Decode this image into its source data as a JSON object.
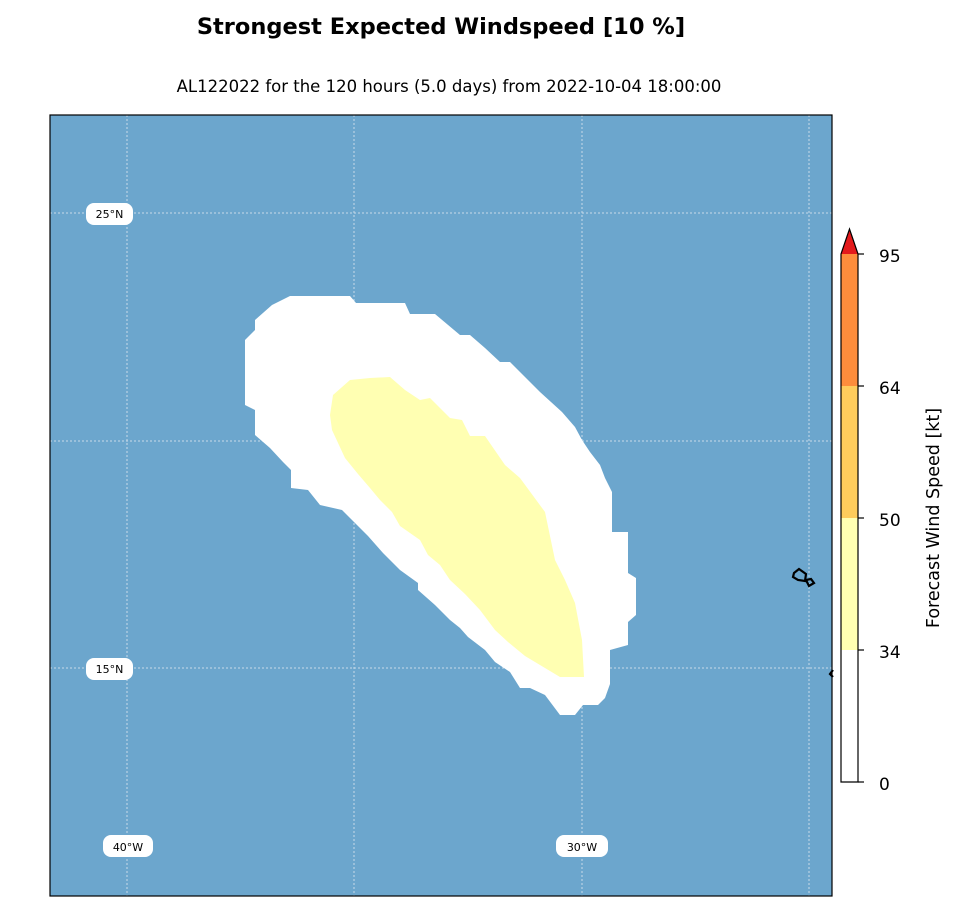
{
  "title": "Strongest Expected Windspeed [10 %]",
  "subtitle": "AL122022 for the 120 hours (5.0 days) from 2022-10-04 18:00:00",
  "map": {
    "ocean_color": "#6ca6cd",
    "gridlines": true,
    "lat_labels": [
      "25°N",
      "15°N"
    ],
    "lon_labels": [
      "40°W",
      "30°W"
    ]
  },
  "colorbar": {
    "label": "Forecast Wind Speed [kt]",
    "ticks": [
      "0",
      "34",
      "50",
      "64",
      "95"
    ],
    "bands": [
      {
        "from": 0,
        "to": 34,
        "color": "#ffffff"
      },
      {
        "from": 34,
        "to": 50,
        "color": "#ffffb2"
      },
      {
        "from": 50,
        "to": 64,
        "color": "#fecc5c"
      },
      {
        "from": 64,
        "to": 95,
        "color": "#fd8d3c"
      }
    ],
    "extend_color": "#e31a1c"
  },
  "swaths": [
    {
      "name": "0-34 kt swath",
      "color": "#ffffff"
    },
    {
      "name": "34-50 kt swath",
      "color": "#ffffb2"
    }
  ]
}
